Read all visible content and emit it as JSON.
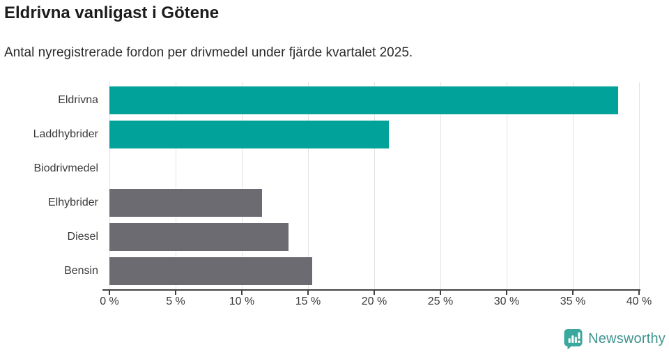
{
  "header": {
    "title": "Eldrivna vanligast i Götene",
    "subtitle": "Antal nyregistrerade fordon per drivmedel under fjärde kvartalet 2025."
  },
  "chart_data": {
    "type": "bar",
    "orientation": "horizontal",
    "title": "Eldrivna vanligast i Götene",
    "subtitle": "Antal nyregistrerade fordon per drivmedel under fjärde kvartalet 2025.",
    "categories": [
      "Eldrivna",
      "Laddhybrider",
      "Biodrivmedel",
      "Elhybrider",
      "Diesel",
      "Bensin"
    ],
    "values": [
      38.4,
      21.1,
      0,
      11.5,
      13.5,
      15.3
    ],
    "unit": "%",
    "xlim": [
      0,
      40
    ],
    "xticks": [
      0,
      5,
      10,
      15,
      20,
      25,
      30,
      35,
      40
    ],
    "xtick_label_suffix": " %",
    "grid": true,
    "legend": "none",
    "bar_colors": [
      "#00a29a",
      "#00a29a",
      "#6c6b72",
      "#6c6b72",
      "#6c6b72",
      "#6c6b72"
    ],
    "highlight_color": "#00a29a",
    "default_color": "#6c6b72",
    "gridline_color": "#e3e3e3",
    "axis_color": "#414141"
  },
  "footer": {
    "brand": "Newsworthy",
    "logo_color": "#3aa89c",
    "brand_text_color": "#3f948e"
  }
}
